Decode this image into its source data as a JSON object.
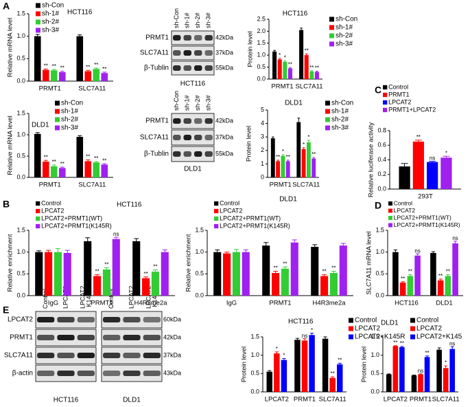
{
  "panel_labels": [
    "A",
    "B",
    "C",
    "D",
    "E"
  ],
  "blots": [
    {
      "groups": [
        {
          "lanes": [
            "sh-Con",
            "sh-1#",
            "sh-2#",
            "sh-3#"
          ],
          "caption": "HCT116"
        }
      ],
      "rows": [
        {
          "label": "PRMT1",
          "kda": "42kDa"
        },
        {
          "label": "SLC7A11",
          "kda": "37kDa"
        },
        {
          "label": "β-Tublin",
          "kda": "55kDa"
        }
      ]
    },
    {
      "groups": [
        {
          "lanes": [
            "sh-Con",
            "sh-1#",
            "sh-2#",
            "sh-3#"
          ],
          "caption": "DLD1"
        }
      ],
      "rows": [
        {
          "label": "PRMT1",
          "kda": "42kDa"
        },
        {
          "label": "SLC7A11",
          "kda": "37kDa"
        },
        {
          "label": "β-Tublin",
          "kda": "55kDa"
        }
      ]
    },
    {
      "groups": [
        {
          "lanes": [
            "Control",
            "LPCAT2",
            "LPCAT2 K145R"
          ],
          "caption": "HCT116"
        },
        {
          "lanes": [
            "Control",
            "LPCAT2",
            "LPCAT2 K145R"
          ],
          "caption": "DLD1"
        }
      ],
      "rows": [
        {
          "label": "LPCAT2",
          "kda": "60kDa"
        },
        {
          "label": "PRMT1",
          "kda": "42kDa"
        },
        {
          "label": "SLC7A11",
          "kda": "37kDa"
        },
        {
          "label": "β-actin",
          "kda": "43kDa"
        }
      ]
    }
  ],
  "chart_data": [
    {
      "type": "bar",
      "title": "HCT116",
      "ylabel": "Relative mRNA level",
      "categories": [
        "PRMT1",
        "SLC7A11"
      ],
      "ylim": [
        0,
        1.5
      ],
      "yticks": [
        {
          "value": 0,
          "label": "0.0"
        },
        0.5,
        {
          "value": 1,
          "label": "1.0"
        },
        1.5
      ],
      "series": [
        {
          "name": "sh-Con",
          "color": "#000000",
          "values": [
            1.0,
            1.0
          ],
          "errors": [
            0.04,
            0.03
          ],
          "annotations": [
            null,
            null
          ]
        },
        {
          "name": "sh-1#",
          "color": "#ff0000",
          "values": [
            0.25,
            0.22
          ],
          "errors": [
            0.02,
            0.02
          ],
          "annotations": [
            "**",
            "**"
          ]
        },
        {
          "name": "sh-2#",
          "color": "#33cc33",
          "values": [
            0.24,
            0.27
          ],
          "errors": [
            0.02,
            0.02
          ],
          "annotations": [
            "**",
            "**"
          ]
        },
        {
          "name": "sh-3#",
          "color": "#a020f0",
          "values": [
            0.2,
            0.18
          ],
          "errors": [
            0.02,
            0.02
          ],
          "annotations": [
            "**",
            "**"
          ]
        }
      ]
    },
    {
      "type": "bar",
      "title": "HCT116",
      "ylabel": "Protein level",
      "categories": [
        "PRMT1",
        "SLC7A11"
      ],
      "ylim": [
        0,
        2.5
      ],
      "yticks": [
        {
          "value": 0,
          "label": "0.0"
        },
        0.5,
        {
          "value": 1,
          "label": "1.0"
        },
        1.5,
        {
          "value": 2,
          "label": "2.0"
        },
        2.5
      ],
      "series": [
        {
          "name": "sh-Con",
          "color": "#000000",
          "values": [
            1.15,
            2.05
          ],
          "errors": [
            0.05,
            0.08
          ],
          "annotations": [
            null,
            null
          ]
        },
        {
          "name": "sh-1#",
          "color": "#ff0000",
          "values": [
            0.82,
            1.0
          ],
          "errors": [
            0.04,
            0.05
          ],
          "annotations": [
            "*",
            "**"
          ]
        },
        {
          "name": "sh-2#",
          "color": "#33cc33",
          "values": [
            0.72,
            0.32
          ],
          "errors": [
            0.04,
            0.03
          ],
          "annotations": [
            "*",
            "**"
          ]
        },
        {
          "name": "sh-3#",
          "color": "#a020f0",
          "values": [
            0.45,
            0.3
          ],
          "errors": [
            0.03,
            0.03
          ],
          "annotations": [
            "**",
            "**"
          ]
        }
      ]
    },
    {
      "type": "bar",
      "title": "DLD1",
      "ylabel": "Relative mRNA level",
      "categories": [
        "PRMT1",
        "SLC7A11"
      ],
      "ylim": [
        0,
        1.5
      ],
      "yticks": [
        {
          "value": 0,
          "label": "0.0"
        },
        0.5,
        {
          "value": 1,
          "label": "1.0"
        },
        1.5
      ],
      "series": [
        {
          "name": "sh-Con",
          "color": "#000000",
          "values": [
            1.02,
            0.95
          ],
          "errors": [
            0.03,
            0.03
          ],
          "annotations": [
            null,
            null
          ]
        },
        {
          "name": "sh-1#",
          "color": "#ff0000",
          "values": [
            0.37,
            0.38
          ],
          "errors": [
            0.03,
            0.03
          ],
          "annotations": [
            "**",
            "**"
          ]
        },
        {
          "name": "sh-2#",
          "color": "#33cc33",
          "values": [
            0.26,
            0.35
          ],
          "errors": [
            0.03,
            0.02
          ],
          "annotations": [
            "**",
            "**"
          ]
        },
        {
          "name": "sh-3#",
          "color": "#a020f0",
          "values": [
            0.22,
            0.3
          ],
          "errors": [
            0.02,
            0.02
          ],
          "annotations": [
            "**",
            "**"
          ]
        }
      ]
    },
    {
      "type": "bar",
      "title": "DLD1",
      "ylabel": "Protein level",
      "categories": [
        "PRMT1",
        "SLC7A11"
      ],
      "ylim": [
        0,
        5
      ],
      "yticks": [
        0,
        1,
        2,
        3,
        4,
        5
      ],
      "series": [
        {
          "name": "sh-Con",
          "color": "#000000",
          "values": [
            2.9,
            4.1
          ],
          "errors": [
            0.1,
            0.3
          ],
          "annotations": [
            null,
            null
          ]
        },
        {
          "name": "sh-1#",
          "color": "#ff0000",
          "values": [
            1.2,
            2.1
          ],
          "errors": [
            0.08,
            0.1
          ],
          "annotations": [
            "**",
            "*"
          ]
        },
        {
          "name": "sh-2#",
          "color": "#33cc33",
          "values": [
            1.6,
            2.6
          ],
          "errors": [
            0.08,
            0.15
          ],
          "annotations": [
            "*",
            "*"
          ]
        },
        {
          "name": "sh-3#",
          "color": "#a020f0",
          "values": [
            1.2,
            1.4
          ],
          "errors": [
            0.08,
            0.08
          ],
          "annotations": [
            "**",
            "**"
          ]
        }
      ]
    },
    {
      "type": "bar",
      "ylabel": "Relative luciferase activity",
      "categories": [
        "293T"
      ],
      "ylim": [
        0,
        0.8
      ],
      "yticks": [
        {
          "value": 0,
          "label": "0.0"
        },
        0.2,
        0.4,
        0.6,
        0.8
      ],
      "series": [
        {
          "name": "Control",
          "color": "#000000",
          "values": [
            0.31
          ],
          "errors": [
            0.04
          ],
          "annotations": [
            null
          ]
        },
        {
          "name": "PRMT1",
          "color": "#ff0000",
          "values": [
            0.65
          ],
          "errors": [
            0.02
          ],
          "annotations": [
            "**"
          ]
        },
        {
          "name": "LPCAT2",
          "color": "#0000ff",
          "values": [
            0.37
          ],
          "errors": [
            0.01
          ],
          "annotations": [
            "ns"
          ]
        },
        {
          "name": "PRMT1+LPCAT2",
          "color": "#a020f0",
          "values": [
            0.43
          ],
          "errors": [
            0.02
          ],
          "annotations": [
            "*"
          ]
        }
      ]
    },
    {
      "type": "bar",
      "title": "HCT116",
      "ylabel": "Relative enrichment",
      "categories": [
        "IgG",
        "PRMT1",
        "H4R3me2a"
      ],
      "ylim": [
        0,
        1.5
      ],
      "yticks": [
        {
          "value": 0,
          "label": "0.0"
        },
        0.5,
        {
          "value": 1,
          "label": "1.0"
        },
        1.5
      ],
      "series": [
        {
          "name": "Control",
          "color": "#000000",
          "values": [
            1.0,
            1.25,
            1.25
          ],
          "errors": [
            0.03,
            0.08,
            0.06
          ],
          "annotations": [
            null,
            null,
            null
          ]
        },
        {
          "name": "LPCAT2",
          "color": "#ff0000",
          "values": [
            1.0,
            0.45,
            0.4
          ],
          "errors": [
            0.04,
            0.03,
            0.03
          ],
          "annotations": [
            null,
            "**",
            "**"
          ]
        },
        {
          "name": "LPCAT2+PRMT1(WT)",
          "color": "#33cc33",
          "values": [
            1.0,
            0.6,
            0.55
          ],
          "errors": [
            0.08,
            0.04,
            0.04
          ],
          "annotations": [
            null,
            "**",
            "**"
          ]
        },
        {
          "name": "LPCAT2+PRMT1(K145R)",
          "color": "#a020f0",
          "values": [
            0.98,
            1.3,
            1.0
          ],
          "errors": [
            0.06,
            0.04,
            0.05
          ],
          "annotations": [
            null,
            "ns",
            null
          ]
        }
      ]
    },
    {
      "type": "bar",
      "title": "DLD1",
      "ylabel": "Relative enrichment",
      "categories": [
        "IgG",
        "PRMT1",
        "H4R3me2a"
      ],
      "ylim": [
        0,
        1.5
      ],
      "yticks": [
        {
          "value": 0,
          "label": "0.0"
        },
        0.5,
        {
          "value": 1,
          "label": "1.0"
        },
        1.5
      ],
      "series": [
        {
          "name": "Control",
          "color": "#000000",
          "values": [
            1.0,
            1.15,
            1.12
          ],
          "errors": [
            0.05,
            0.07,
            0.05
          ],
          "annotations": [
            null,
            null,
            null
          ]
        },
        {
          "name": "LPCAT2",
          "color": "#ff0000",
          "values": [
            0.97,
            0.52,
            0.45
          ],
          "errors": [
            0.03,
            0.04,
            0.03
          ],
          "annotations": [
            null,
            "**",
            "**"
          ]
        },
        {
          "name": "LPCAT2+PRMT1(WT)",
          "color": "#33cc33",
          "values": [
            1.0,
            0.62,
            0.52
          ],
          "errors": [
            0.06,
            0.04,
            0.04
          ],
          "annotations": [
            null,
            "**",
            "**"
          ]
        },
        {
          "name": "LPCAT2+PRMT1(K145R)",
          "color": "#a020f0",
          "values": [
            1.0,
            1.22,
            1.15
          ],
          "errors": [
            0.05,
            0.06,
            0.05
          ],
          "annotations": [
            null,
            null,
            null
          ]
        }
      ]
    },
    {
      "type": "bar",
      "ylabel": "SLC7A11 mRNA level",
      "categories": [
        "HCT116",
        "DLD1"
      ],
      "ylim": [
        0,
        1.5
      ],
      "yticks": [
        {
          "value": 0,
          "label": "0.0"
        },
        0.5,
        {
          "value": 1,
          "label": "1.0"
        },
        1.5
      ],
      "series": [
        {
          "name": "Control",
          "color": "#000000",
          "values": [
            1.0,
            0.98
          ],
          "errors": [
            0.05,
            0.03
          ],
          "annotations": [
            null,
            null
          ]
        },
        {
          "name": "LPCAT2",
          "color": "#ff0000",
          "values": [
            0.3,
            0.35
          ],
          "errors": [
            0.02,
            0.03
          ],
          "annotations": [
            "**",
            "**"
          ]
        },
        {
          "name": "LPCAT2+PRMT1(WT)",
          "color": "#33cc33",
          "values": [
            0.45,
            0.45
          ],
          "errors": [
            0.03,
            0.03
          ],
          "annotations": [
            "**",
            "**"
          ]
        },
        {
          "name": "LPCAT2+PRMT1(K145R)",
          "color": "#a020f0",
          "values": [
            0.92,
            1.2
          ],
          "errors": [
            0.04,
            0.05
          ],
          "annotations": [
            "ns",
            "ns"
          ]
        }
      ]
    },
    {
      "type": "bar",
      "title": "HCT116",
      "ylabel": "Protein level",
      "categories": [
        "LPCAT2",
        "PRMT1",
        "SLC7A11"
      ],
      "ylim": [
        0,
        1.5
      ],
      "yticks": [
        {
          "value": 0,
          "label": "0.0"
        },
        0.5,
        {
          "value": 1,
          "label": "1.0"
        },
        1.5
      ],
      "series": [
        {
          "name": "Control",
          "color": "#000000",
          "values": [
            0.55,
            1.42,
            1.45
          ],
          "errors": [
            0.03,
            0.04,
            0.05
          ],
          "annotations": [
            null,
            null,
            null
          ]
        },
        {
          "name": "LPCAT2",
          "color": "#ff0000",
          "values": [
            1.05,
            1.4,
            0.38
          ],
          "errors": [
            0.04,
            0.05,
            0.03
          ],
          "annotations": [
            "*",
            "ns",
            "**"
          ]
        },
        {
          "name": "LPCAT2+K145R",
          "color": "#0000ff",
          "values": [
            0.87,
            1.55,
            0.75
          ],
          "errors": [
            0.04,
            0.05,
            0.03
          ],
          "annotations": [
            "*",
            "*",
            "**"
          ]
        }
      ]
    },
    {
      "type": "bar",
      "title": "DLD1",
      "ylabel": "Protein level",
      "categories": [
        "LPCAT2",
        "PRMT1",
        "SLC7A11"
      ],
      "ylim": [
        0,
        1.5
      ],
      "yticks": [
        {
          "value": 0,
          "label": "0.0"
        },
        0.5,
        {
          "value": 1,
          "label": "1.0"
        },
        1.5
      ],
      "series": [
        {
          "name": "Control",
          "color": "#000000",
          "values": [
            0.48,
            0.45,
            1.15
          ],
          "errors": [
            0.01,
            0.01,
            0.05
          ],
          "annotations": [
            null,
            null,
            null
          ]
        },
        {
          "name": "LPCAT2",
          "color": "#ff0000",
          "values": [
            1.25,
            0.48,
            0.65
          ],
          "errors": [
            0.01,
            0.01,
            0.06
          ],
          "annotations": [
            "**",
            "ns",
            "*"
          ]
        },
        {
          "name": "LPCAT2+K145",
          "color": "#0000ff",
          "values": [
            1.22,
            0.95,
            1.17
          ],
          "errors": [
            0.02,
            0.03,
            0.06
          ],
          "annotations": [
            "**",
            "**",
            "ns"
          ]
        }
      ]
    }
  ]
}
